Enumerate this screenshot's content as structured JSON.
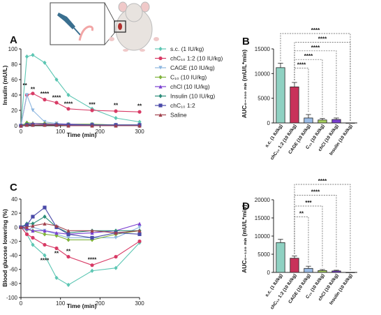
{
  "panels": {
    "A": "A",
    "B": "B",
    "C": "C",
    "D": "D"
  },
  "legend": [
    {
      "label": "s.c. (1 IU/kg)",
      "color": "#5cc6b3",
      "marker": "diamond"
    },
    {
      "label": "chC₁₀ 1:2 (10 IU/kg)",
      "color": "#d83a65",
      "marker": "circle"
    },
    {
      "label": "CAGE (10 IU/kg)",
      "color": "#8db6e0",
      "marker": "triangle-down"
    },
    {
      "label": "C₁₀ (10 IU/kg)",
      "color": "#7fb23a",
      "marker": "diamond"
    },
    {
      "label": "chCl (10 IU/kg)",
      "color": "#7a3fd0",
      "marker": "triangle-up"
    },
    {
      "label": "Insulin (10 IU/kg)",
      "color": "#2c8c79",
      "marker": "diamond"
    },
    {
      "label": "chC₁₀ 1:2",
      "color": "#4a4aa8",
      "marker": "square"
    },
    {
      "label": "Saline",
      "color": "#a0404c",
      "marker": "triangle-up"
    }
  ],
  "chart_data": [
    {
      "id": "A",
      "type": "line",
      "xlabel": "Time (min)",
      "ylabel": "Insulin (mU/L)",
      "xlim": [
        0,
        300
      ],
      "ylim": [
        0,
        100
      ],
      "xticks": [
        0,
        100,
        200,
        300
      ],
      "yticks": [
        0,
        20,
        40,
        60,
        80,
        100
      ],
      "x": [
        0,
        15,
        30,
        60,
        90,
        120,
        180,
        240,
        300
      ],
      "series": [
        {
          "name": "s.c. (1 IU/kg)",
          "values": [
            0,
            90,
            92,
            82,
            60,
            40,
            22,
            10,
            5
          ]
        },
        {
          "name": "chC₁₀ 1:2 (10 IU/kg)",
          "values": [
            0,
            40,
            42,
            34,
            30,
            22,
            20,
            19,
            18
          ]
        },
        {
          "name": "CAGE (10 IU/kg)",
          "values": [
            0,
            40,
            20,
            5,
            3,
            2,
            2,
            1,
            1
          ]
        },
        {
          "name": "C₁₀ (10 IU/kg)",
          "values": [
            0,
            4,
            3,
            3,
            2,
            2,
            2,
            1,
            1
          ]
        },
        {
          "name": "chCl (10 IU/kg)",
          "values": [
            0,
            2,
            3,
            2,
            2,
            2,
            1,
            1,
            1
          ]
        },
        {
          "name": "Insulin (10 IU/kg)",
          "values": [
            0,
            2,
            1,
            1,
            1,
            1,
            1,
            1,
            1
          ]
        },
        {
          "name": "chC₁₀ 1:2",
          "values": [
            0,
            1,
            1,
            1,
            1,
            1,
            1,
            1,
            1
          ]
        },
        {
          "name": "Saline",
          "values": [
            0,
            1,
            1,
            1,
            1,
            0,
            0,
            0,
            0
          ]
        }
      ],
      "annotations": [
        {
          "text": "**",
          "x": 10,
          "y": 50
        },
        {
          "text": "**",
          "x": 30,
          "y": 45
        },
        {
          "text": "****",
          "x": 60,
          "y": 39
        },
        {
          "text": "****",
          "x": 90,
          "y": 34
        },
        {
          "text": "****",
          "x": 120,
          "y": 26
        },
        {
          "text": "***",
          "x": 180,
          "y": 25
        },
        {
          "text": "**",
          "x": 240,
          "y": 24
        },
        {
          "text": "**",
          "x": 300,
          "y": 23
        }
      ]
    },
    {
      "id": "B",
      "type": "bar",
      "ylabel": "AUC₀₋₃₀₀ ₘᵢₙ (mU/L*min)",
      "ylim": [
        0,
        15000
      ],
      "yticks": [
        0,
        5000,
        10000,
        15000
      ],
      "categories": [
        "s.c. (1 IU/kg)",
        "chC₁₀ 1:2 (10 IU/kg)",
        "CAGE (10 IU/kg)",
        "C₁₀ (10 IU/kg)",
        "chCl (10 IU/kg)",
        "Insulin (10 IU/kg)"
      ],
      "values": [
        11200,
        7300,
        1000,
        600,
        700,
        0
      ],
      "errors": [
        900,
        900,
        700,
        300,
        300,
        0
      ],
      "colors": [
        "#8fd1c2",
        "#c8325a",
        "#9bbce6",
        "#a6ce5e",
        "#7a3fd0",
        "#2c8c79"
      ],
      "brackets": [
        {
          "from": 0,
          "to": 5,
          "text": "****",
          "level": 0
        },
        {
          "from": 1,
          "to": 5,
          "text": "****",
          "level": 1
        },
        {
          "from": 1,
          "to": 4,
          "text": "****",
          "level": 2
        },
        {
          "from": 1,
          "to": 3,
          "text": "****",
          "level": 3
        },
        {
          "from": 1,
          "to": 2,
          "text": "****",
          "level": 4
        }
      ]
    },
    {
      "id": "C",
      "type": "line",
      "xlabel": "Time (min)",
      "ylabel": "Blood glucose lowering (%)",
      "xlim": [
        0,
        300
      ],
      "ylim": [
        -100,
        40
      ],
      "xticks": [
        0,
        100,
        200,
        300
      ],
      "yticks": [
        -100,
        -80,
        -60,
        -40,
        -20,
        0,
        20,
        40
      ],
      "x": [
        0,
        15,
        30,
        60,
        90,
        120,
        180,
        240,
        300
      ],
      "series": [
        {
          "name": "s.c. (1 IU/kg)",
          "values": [
            0,
            -10,
            -25,
            -40,
            -72,
            -82,
            -62,
            -58,
            -22
          ]
        },
        {
          "name": "chC₁₀ 1:2 (10 IU/kg)",
          "values": [
            0,
            -10,
            -15,
            -25,
            -30,
            -42,
            -54,
            -42,
            -20
          ]
        },
        {
          "name": "CAGE (10 IU/kg)",
          "values": [
            0,
            -5,
            0,
            -5,
            -10,
            -15,
            -15,
            -15,
            0
          ]
        },
        {
          "name": "C₁₀ (10 IU/kg)",
          "values": [
            0,
            -3,
            -5,
            -10,
            -12,
            -18,
            -18,
            -10,
            -5
          ]
        },
        {
          "name": "chCl (10 IU/kg)",
          "values": [
            0,
            -2,
            -5,
            -5,
            -8,
            -10,
            -8,
            -5,
            5
          ]
        },
        {
          "name": "Insulin (10 IU/kg)",
          "values": [
            0,
            5,
            5,
            15,
            0,
            -8,
            -5,
            -5,
            -5
          ]
        },
        {
          "name": "chC₁₀ 1:2",
          "values": [
            0,
            3,
            15,
            28,
            0,
            -10,
            -15,
            -8,
            -10
          ]
        },
        {
          "name": "Saline",
          "values": [
            0,
            0,
            2,
            5,
            2,
            -5,
            -5,
            -8,
            -5
          ]
        }
      ],
      "annotations": [
        {
          "text": "****",
          "x": 60,
          "y": -50
        },
        {
          "text": "**",
          "x": 90,
          "y": -40
        },
        {
          "text": "**",
          "x": 120,
          "y": -37
        },
        {
          "text": "****",
          "x": 180,
          "y": -49
        }
      ]
    },
    {
      "id": "D",
      "type": "bar",
      "ylabel": "AUC₀₋₁₂₀ ₘᵢₙ (mU/L*min)",
      "ylim": [
        0,
        20000
      ],
      "yticks": [
        0,
        5000,
        10000,
        15000,
        20000
      ],
      "categories": [
        "s.c. (1 IU/kg)",
        "chC₁₀ 1:2 (10 IU/kg)",
        "CAGE (10 IU/kg)",
        "C₁₀ (10 IU/kg)",
        "chCl (10 IU/kg)",
        "Insulin (10 IU/kg)"
      ],
      "values": [
        8200,
        3900,
        1100,
        500,
        400,
        0
      ],
      "errors": [
        900,
        600,
        600,
        300,
        200,
        0
      ],
      "colors": [
        "#8fd1c2",
        "#c8325a",
        "#9bbce6",
        "#a6ce5e",
        "#7a3fd0",
        "#2c8c79"
      ],
      "brackets": [
        {
          "from": 1,
          "to": 5,
          "text": "****",
          "level": 0
        },
        {
          "from": 1,
          "to": 4,
          "text": "****",
          "level": 1
        },
        {
          "from": 1,
          "to": 3,
          "text": "***",
          "level": 2
        },
        {
          "from": 1,
          "to": 2,
          "text": "**",
          "level": 3
        }
      ]
    }
  ]
}
